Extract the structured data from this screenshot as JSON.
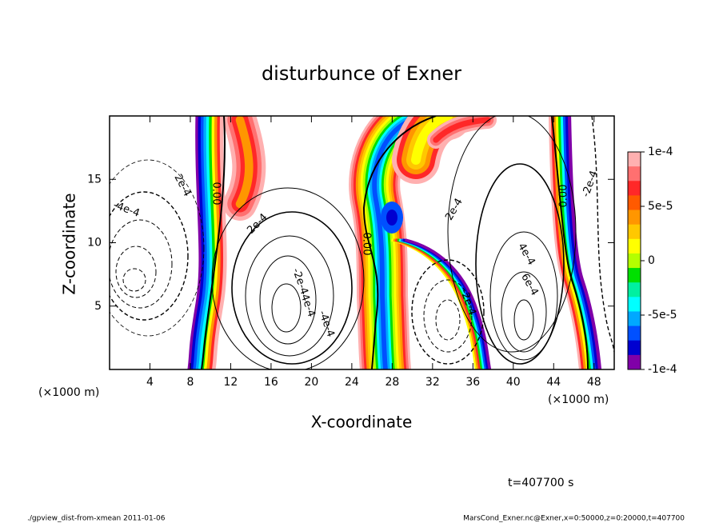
{
  "chart_data": {
    "type": "contour",
    "title": "disturbunce of Exner",
    "x_label": "X-coordinate",
    "y_label": "Z-coordinate",
    "x_unit": "(×1000 m)",
    "y_unit": "(×1000 m)",
    "xlim": [
      0,
      50
    ],
    "xticks": [
      4,
      8,
      12,
      16,
      20,
      24,
      28,
      32,
      36,
      40,
      44,
      48
    ],
    "ylim": [
      0,
      20
    ],
    "yticks": [
      5,
      10,
      15
    ],
    "colorbar": {
      "lim": [
        -0.0001,
        0.0001
      ],
      "ticks": [
        {
          "value": 0.0001,
          "label": "1e-4"
        },
        {
          "value": 5e-05,
          "label": "5e-5"
        },
        0,
        {
          "value": -5e-05,
          "label": "-5e-5"
        },
        {
          "value": -0.0001,
          "label": "-1e-4"
        }
      ],
      "colors": [
        "#ffb0b0",
        "#ff7070",
        "#ff2828",
        "#ff5a00",
        "#ff9600",
        "#ffc800",
        "#ffff00",
        "#b4ff00",
        "#00e000",
        "#00f0a0",
        "#00ffff",
        "#00a8ff",
        "#0050ff",
        "#0000d0",
        "#8000a8"
      ]
    },
    "contour_labels": [
      "2e-4",
      "-4e-4",
      "0.00",
      "2e-4",
      "0.00",
      "2e-4",
      "0.00",
      "-2e-4",
      "4e-4",
      "6e-4",
      "-2e-4",
      "-2e-4",
      "-4e-4",
      "-4e-4"
    ]
  },
  "time_label": "t=407700 s",
  "footer_left": "./gpview_dist-from-xmean  2011-01-06",
  "footer_right": "MarsCond_Exner.nc@Exner,x=0:50000,z=0:20000,t=407700"
}
